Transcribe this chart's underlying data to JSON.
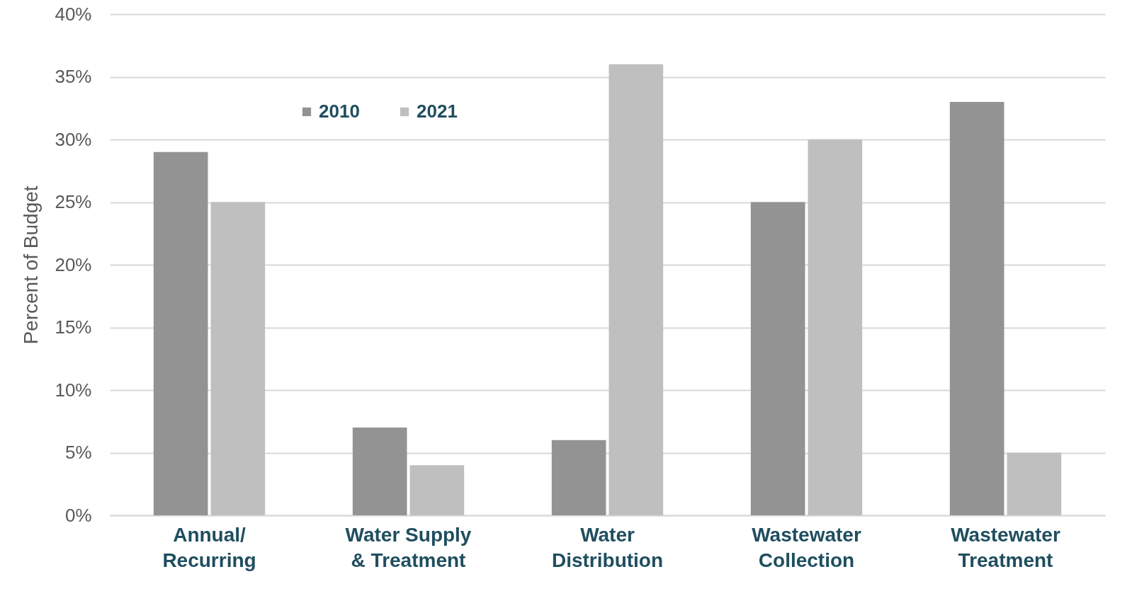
{
  "chart_data": {
    "type": "bar",
    "ylabel": "Percent of Budget",
    "categories": [
      "Annual/\nRecurring",
      "Water Supply\n& Treatment",
      "Water\nDistribution",
      "Wastewater\nCollection",
      "Wastewater\nTreatment"
    ],
    "series": [
      {
        "name": "2010",
        "color": "#939393",
        "values": [
          29,
          7,
          6,
          25,
          33
        ]
      },
      {
        "name": "2021",
        "color": "#bfbfbf",
        "values": [
          25,
          4,
          36,
          30,
          5
        ]
      }
    ],
    "ylim": [
      0,
      40
    ],
    "yticks": [
      {
        "value": 0,
        "label": "0%"
      },
      {
        "value": 5,
        "label": "5%"
      },
      {
        "value": 10,
        "label": "10%"
      },
      {
        "value": 15,
        "label": "15%"
      },
      {
        "value": 20,
        "label": "20%"
      },
      {
        "value": 25,
        "label": "25%"
      },
      {
        "value": 30,
        "label": "30%"
      },
      {
        "value": 35,
        "label": "35%"
      },
      {
        "value": 40,
        "label": "40%"
      }
    ],
    "grid": "y",
    "legend": "top left"
  }
}
